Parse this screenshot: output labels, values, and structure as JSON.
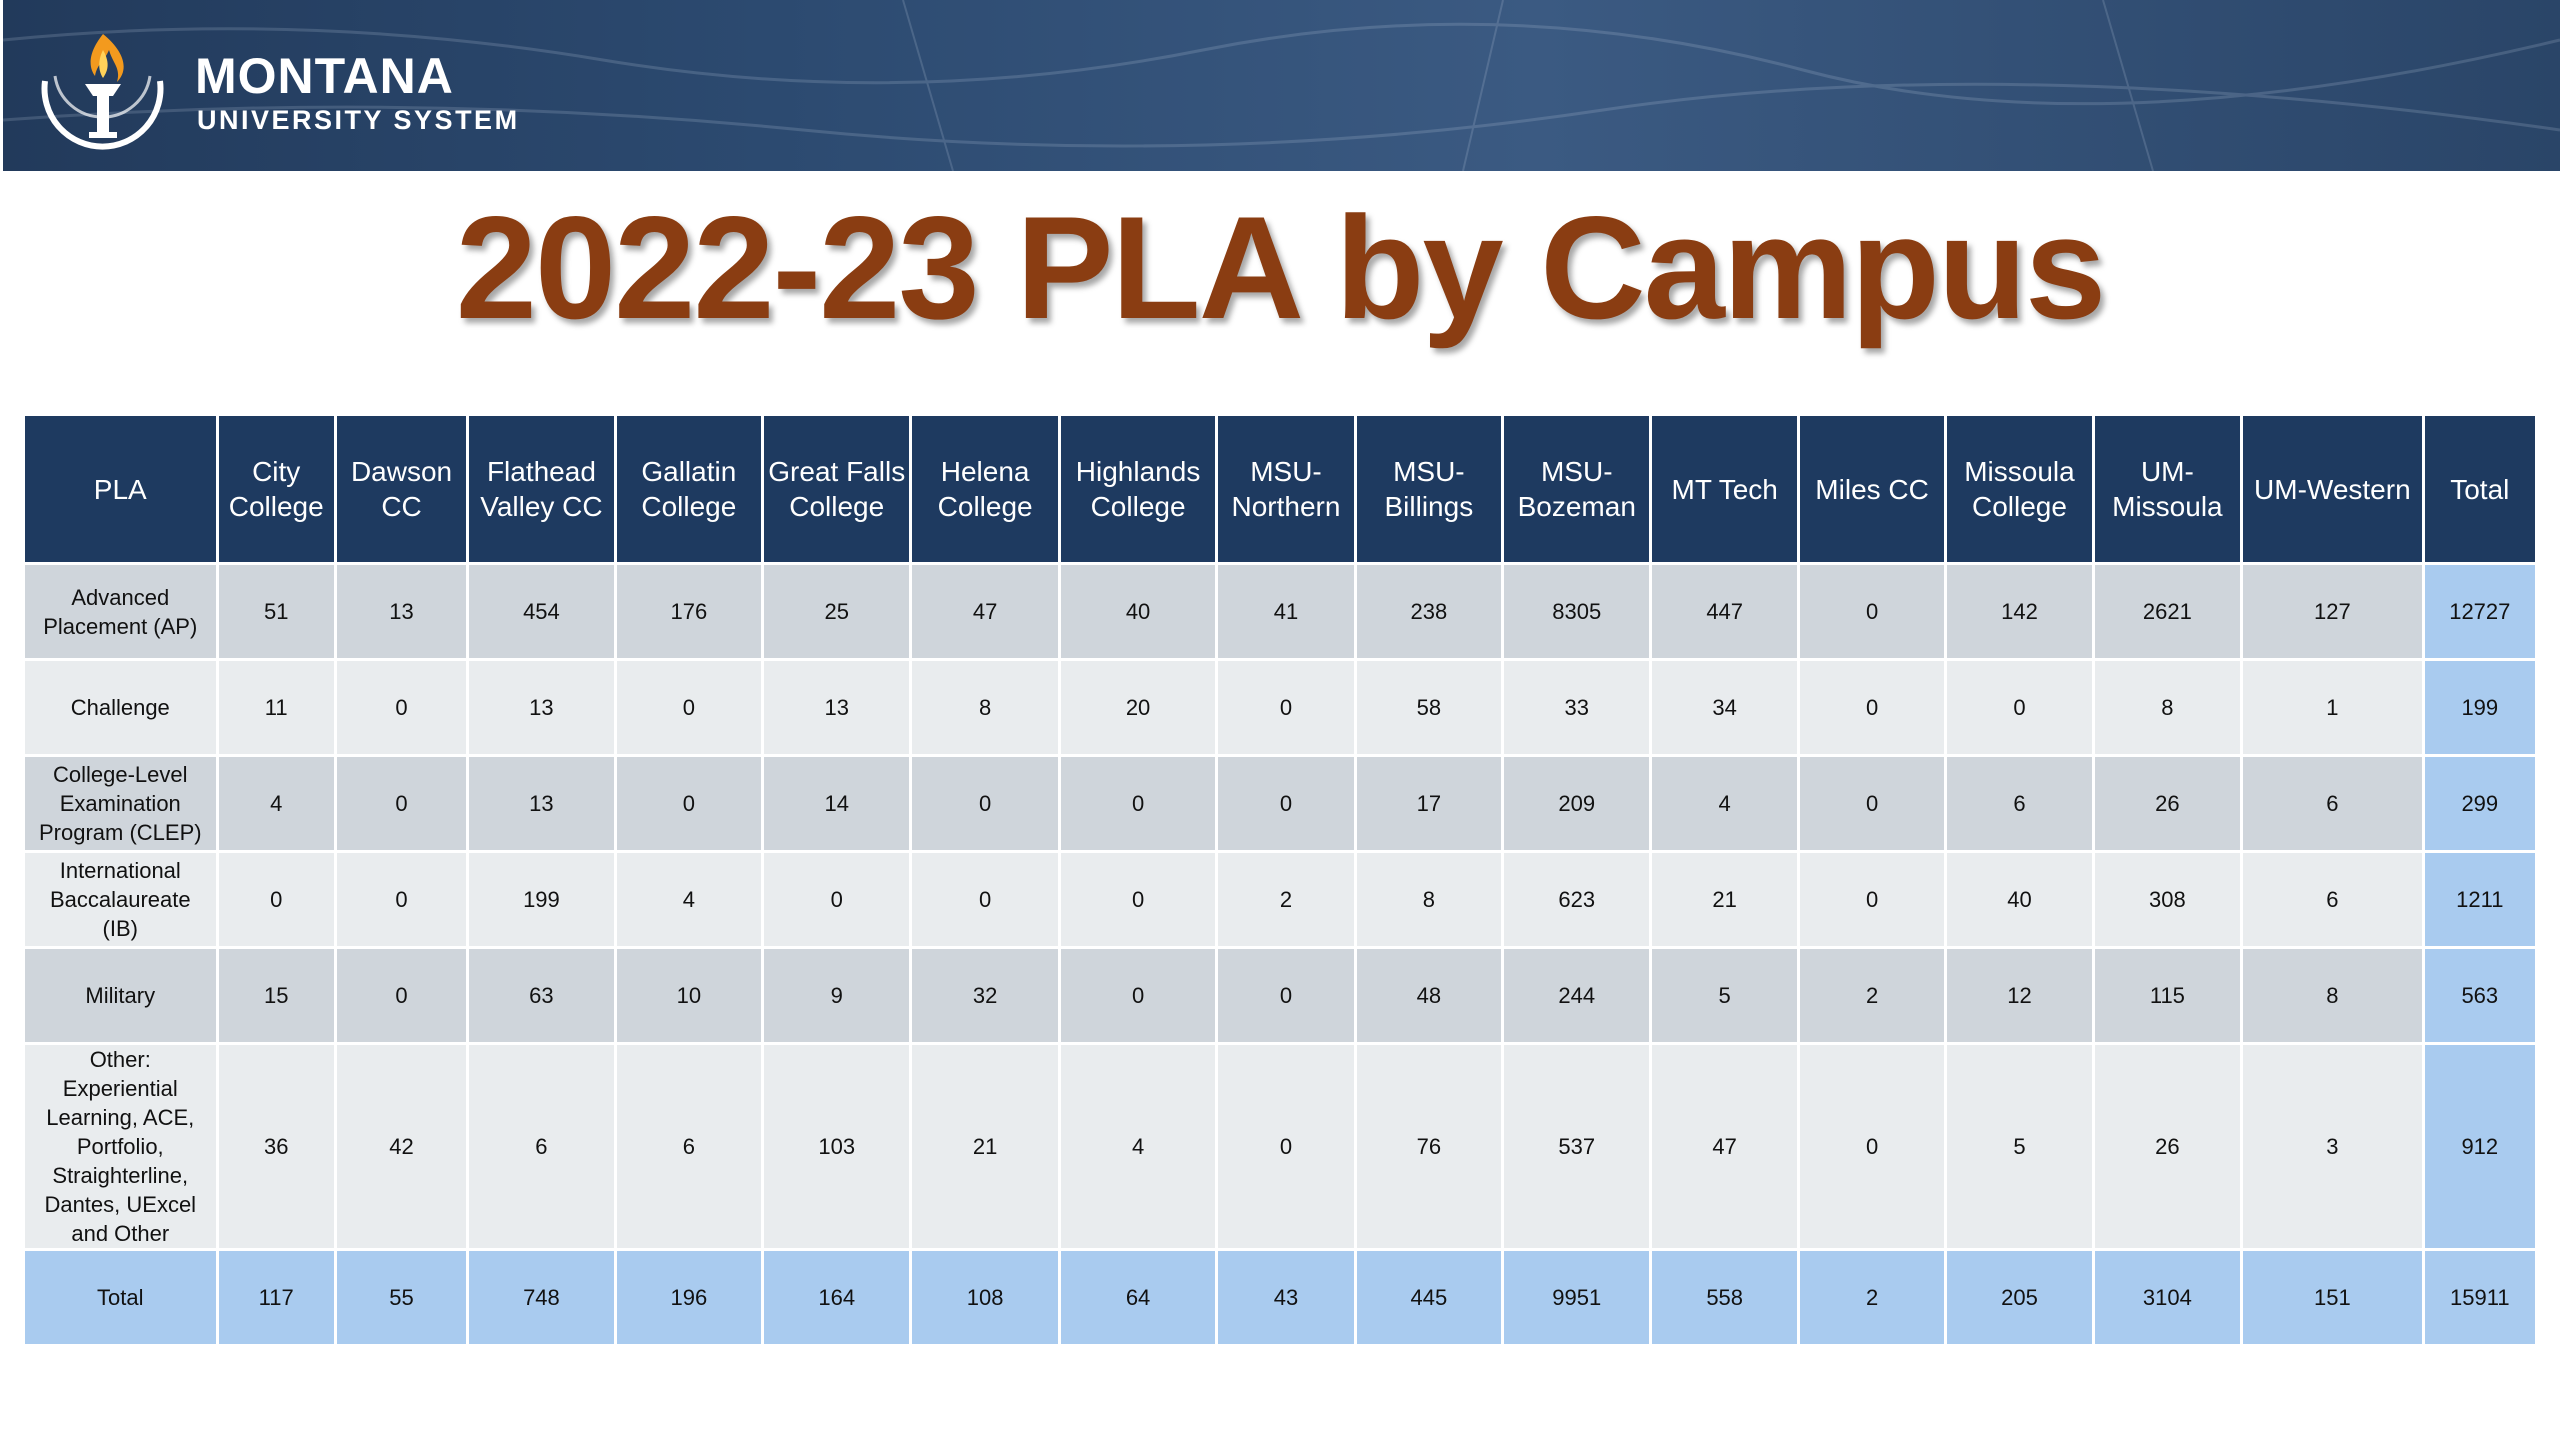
{
  "brand": {
    "name": "MONTANA",
    "subname": "UNIVERSITY SYSTEM"
  },
  "title": "2022-23 PLA by Campus",
  "table": {
    "columns": [
      "PLA",
      "City\nCollege",
      "Dawson\nCC",
      "Flathead\nValley CC",
      "Gallatin\nCollege",
      "Great Falls\nCollege",
      "Helena\nCollege",
      "Highlands\nCollege",
      "MSU-\nNorthern",
      "MSU-\nBillings",
      "MSU-\nBozeman",
      "MT Tech",
      "Miles CC",
      "Missoula\nCollege",
      "UM-\nMissoula",
      "UM-Western",
      "Total"
    ],
    "rows": [
      {
        "label": "Advanced\nPlacement (AP)",
        "values": [
          "51",
          "13",
          "454",
          "176",
          "25",
          "47",
          "40",
          "41",
          "238",
          "8305",
          "447",
          "0",
          "142",
          "2621",
          "127",
          "12727"
        ]
      },
      {
        "label": "Challenge",
        "values": [
          "11",
          "0",
          "13",
          "0",
          "13",
          "8",
          "20",
          "0",
          "58",
          "33",
          "34",
          "0",
          "0",
          "8",
          "1",
          "199"
        ]
      },
      {
        "label": "College-Level\nExamination\nProgram (CLEP)",
        "values": [
          "4",
          "0",
          "13",
          "0",
          "14",
          "0",
          "0",
          "0",
          "17",
          "209",
          "4",
          "0",
          "6",
          "26",
          "6",
          "299"
        ]
      },
      {
        "label": "International\nBaccalaureate\n(IB)",
        "values": [
          "0",
          "0",
          "199",
          "4",
          "0",
          "0",
          "0",
          "2",
          "8",
          "623",
          "21",
          "0",
          "40",
          "308",
          "6",
          "1211"
        ]
      },
      {
        "label": "Military",
        "values": [
          "15",
          "0",
          "63",
          "10",
          "9",
          "32",
          "0",
          "0",
          "48",
          "244",
          "5",
          "2",
          "12",
          "115",
          "8",
          "563"
        ]
      },
      {
        "label": "Other:\nExperiential\nLearning, ACE,\nPortfolio,\nStraighterline,\nDantes, UExcel\nand Other",
        "values": [
          "36",
          "42",
          "6",
          "6",
          "103",
          "21",
          "4",
          "0",
          "76",
          "537",
          "47",
          "0",
          "5",
          "26",
          "3",
          "912"
        ]
      },
      {
        "label": "Total",
        "values": [
          "117",
          "55",
          "748",
          "196",
          "164",
          "108",
          "64",
          "43",
          "445",
          "9951",
          "558",
          "2",
          "205",
          "3104",
          "151",
          "15911"
        ]
      }
    ]
  },
  "colors": {
    "header": "#1e3a60",
    "title": "#8a3d12",
    "total": "#a9cbef",
    "row_dark": "#cfd5db",
    "row_light": "#e9ecee"
  }
}
